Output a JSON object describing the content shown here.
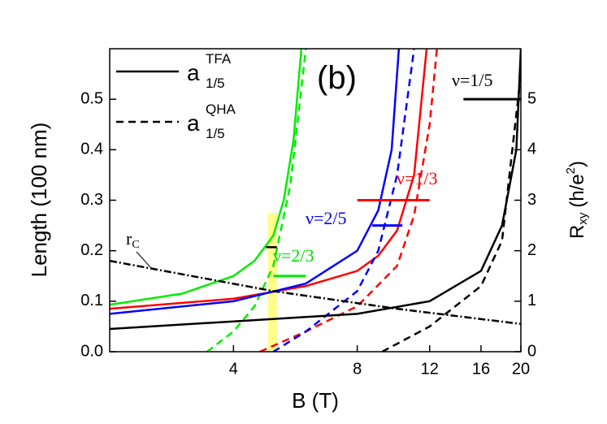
{
  "chart_data": {
    "type": "line",
    "xscale": "log",
    "xlim": [
      2,
      20
    ],
    "xticks": [
      4,
      8,
      12,
      16,
      20
    ],
    "ylim": [
      0,
      0.6
    ],
    "yticks": [
      {
        "value": 0,
        "label": "0.0"
      },
      0.1,
      0.2,
      0.3,
      0.4,
      0.5
    ],
    "y2lim": [
      0,
      6
    ],
    "y2ticks": [
      0,
      1,
      2,
      3,
      4,
      5
    ],
    "xlabel": "B (T)",
    "ylabel": "Length (100 nm)",
    "y2label": {
      "main": "R",
      "sub": "xy",
      "unit": "(h/e",
      "sup": "2",
      "close": ")"
    },
    "highlight": {
      "x": [
        4.85,
        5.1
      ],
      "y": [
        0,
        0.275
      ],
      "color": "#ffff88"
    },
    "legend": [
      {
        "name": "a",
        "sup": "TFA",
        "sub": "1/5",
        "dash": "solid",
        "color": "#000000"
      },
      {
        "name": "a",
        "sup": "QHA",
        "sub": "1/5",
        "dash": "dashed",
        "color": "#000000"
      }
    ],
    "annotations": [
      {
        "text": "(b)",
        "color": "#000000"
      },
      {
        "text": "ν=1/5",
        "color": "#000000"
      },
      {
        "text": "ν=1/3",
        "color": "#ff0000"
      },
      {
        "text": "ν=2/5",
        "color": "#0000ff"
      },
      {
        "text": "ν=2/3",
        "color": "#00dd00"
      },
      {
        "text": "r",
        "sub": "C",
        "color": "#000000"
      }
    ],
    "series": [
      {
        "color": "#00ee00",
        "dash": "solid",
        "x": [
          2,
          3,
          4,
          4.5,
          5,
          5.3,
          5.6,
          5.85
        ],
        "values": [
          0.093,
          0.115,
          0.15,
          0.18,
          0.23,
          0.3,
          0.42,
          0.6
        ]
      },
      {
        "color": "#00ee00",
        "dash": "dashed",
        "x": [
          3.45,
          4,
          4.5,
          5,
          5.5,
          6
        ],
        "values": [
          0,
          0.04,
          0.09,
          0.17,
          0.33,
          0.6
        ]
      },
      {
        "color": "#ff0000",
        "dash": "solid",
        "x": [
          2,
          4,
          6,
          8,
          9,
          10,
          11,
          11.8
        ],
        "values": [
          0.085,
          0.105,
          0.13,
          0.16,
          0.19,
          0.24,
          0.35,
          0.6
        ]
      },
      {
        "color": "#ff0000",
        "dash": "dashed",
        "x": [
          4.64,
          6,
          8,
          10,
          11,
          12,
          12.5
        ],
        "values": [
          0,
          0.04,
          0.09,
          0.17,
          0.27,
          0.45,
          0.6
        ]
      },
      {
        "color": "#0000ff",
        "dash": "solid",
        "x": [
          2,
          4,
          6,
          8,
          9,
          9.7,
          10.1
        ],
        "values": [
          0.075,
          0.1,
          0.135,
          0.2,
          0.28,
          0.4,
          0.6
        ]
      },
      {
        "color": "#0000ff",
        "dash": "dashed",
        "x": [
          5,
          6,
          8,
          9,
          10,
          11
        ],
        "values": [
          0,
          0.04,
          0.12,
          0.2,
          0.35,
          0.6
        ]
      },
      {
        "color": "#000000",
        "dash": "solid",
        "x": [
          2,
          4,
          8,
          12,
          16,
          18,
          19.5,
          20
        ],
        "values": [
          0.045,
          0.06,
          0.075,
          0.1,
          0.16,
          0.25,
          0.4,
          0.6
        ]
      },
      {
        "color": "#000000",
        "dash": "dashed",
        "x": [
          9.2,
          12,
          16,
          18,
          20
        ],
        "values": [
          0,
          0.05,
          0.13,
          0.22,
          0.55
        ]
      },
      {
        "color": "#000000",
        "dash": "dashdot",
        "x": [
          2,
          5,
          10,
          20
        ],
        "values": [
          0.18,
          0.12,
          0.085,
          0.055
        ]
      },
      {
        "color": "#000000",
        "dash": "solid",
        "x": [
          4.8,
          5.1
        ],
        "values": [
          0.207,
          0.207
        ]
      },
      {
        "color": "#000000",
        "dash": "solid",
        "axis": "y2",
        "x": [
          14.5,
          20
        ],
        "values": [
          5,
          5
        ]
      },
      {
        "color": "#ff0000",
        "dash": "solid",
        "axis": "y2",
        "x": [
          8,
          12
        ],
        "values": [
          3,
          3
        ]
      },
      {
        "color": "#0000ff",
        "dash": "solid",
        "axis": "y2",
        "x": [
          8.7,
          10.3
        ],
        "values": [
          2.5,
          2.5
        ]
      },
      {
        "color": "#00ee00",
        "dash": "solid",
        "axis": "y2",
        "x": [
          5,
          6
        ],
        "values": [
          1.5,
          1.5
        ]
      }
    ]
  }
}
